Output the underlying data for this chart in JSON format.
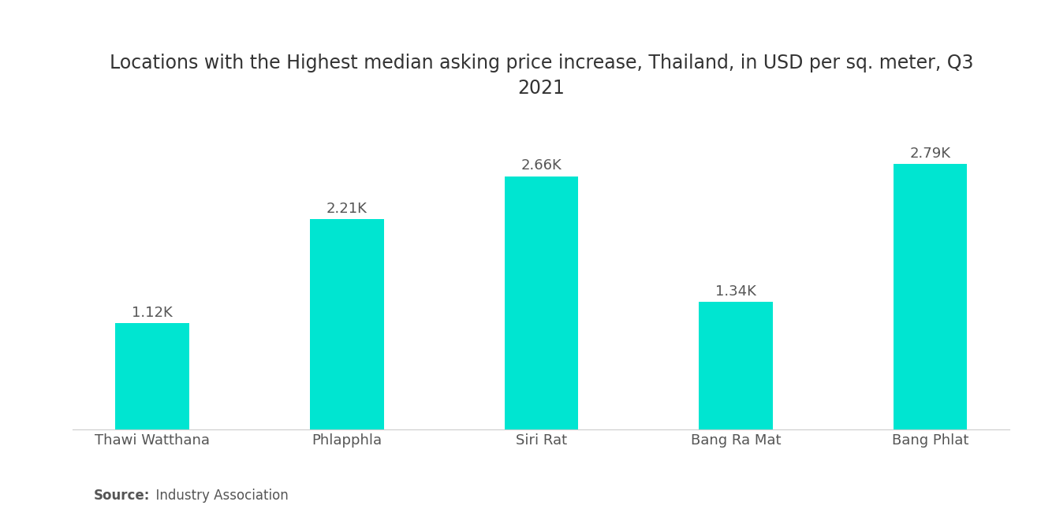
{
  "title": "Locations with the Highest median asking price increase, Thailand, in USD per sq. meter, Q3\n2021",
  "categories": [
    "Thawi Watthana",
    "Phlapphla",
    "Siri Rat",
    "Bang Ra Mat",
    "Bang Phlat"
  ],
  "values": [
    1120,
    2210,
    2660,
    1340,
    2790
  ],
  "labels": [
    "1.12K",
    "2.21K",
    "2.66K",
    "1.34K",
    "2.79K"
  ],
  "bar_color": "#00E5D1",
  "background_color": "#ffffff",
  "source_bold": "Source:",
  "source_normal": "  Industry Association",
  "title_fontsize": 17,
  "label_fontsize": 13,
  "category_fontsize": 13,
  "source_fontsize": 12,
  "ylim": [
    0,
    3300
  ]
}
